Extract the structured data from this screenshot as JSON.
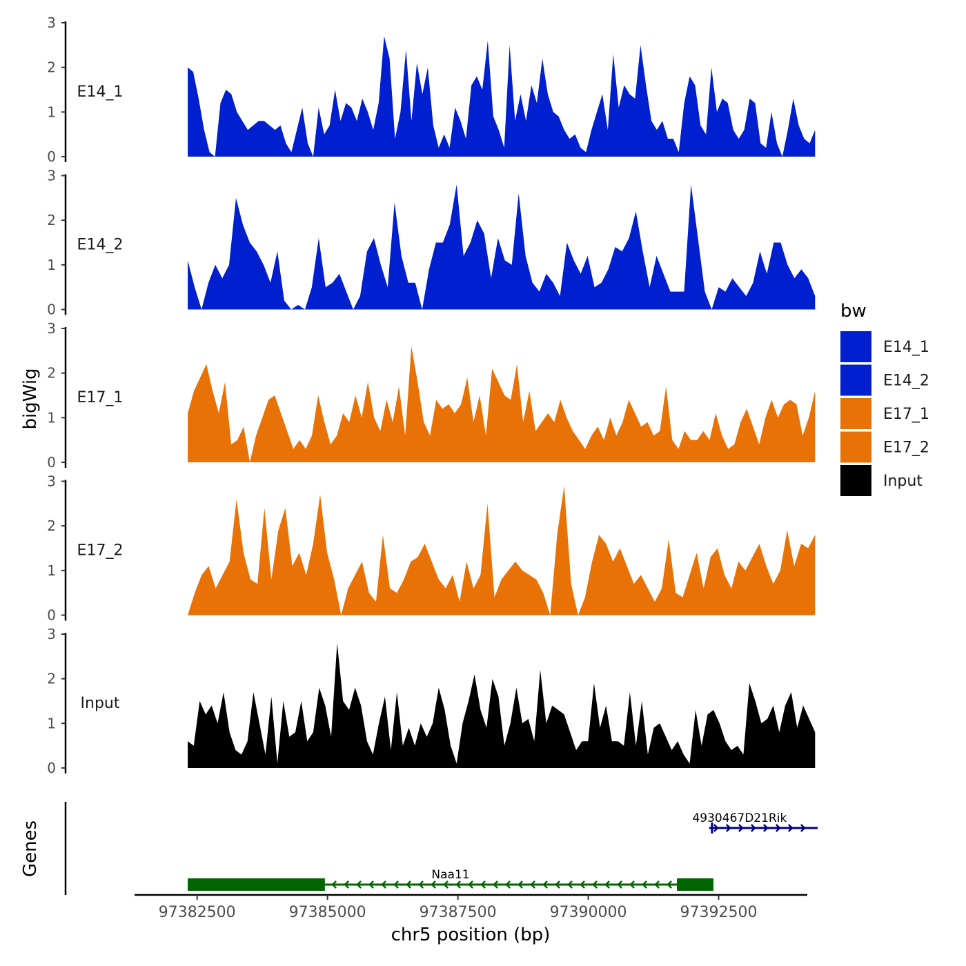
{
  "chart_data": {
    "type": "area",
    "ylabel": "bigWig",
    "xlabel": "chr5 position (bp)",
    "xlim": [
      97381300,
      97394200
    ],
    "x_ticks": [
      97382500,
      97385000,
      97387500,
      97390000,
      97392500
    ],
    "track_x_range": [
      97382320,
      97394350
    ],
    "ylim": [
      0,
      3
    ],
    "y_ticks": [
      0,
      1,
      2,
      3
    ],
    "legend": {
      "title": "bw",
      "entries": [
        {
          "label": "E14_1",
          "color": "#0020D0"
        },
        {
          "label": "E14_2",
          "color": "#0020D0"
        },
        {
          "label": "E17_1",
          "color": "#E87205"
        },
        {
          "label": "E17_2",
          "color": "#E87205"
        },
        {
          "label": "Input",
          "color": "#000000"
        }
      ]
    },
    "series": [
      {
        "name": "E14_1",
        "color": "#0020D0",
        "values": [
          2.0,
          1.9,
          1.3,
          0.6,
          0.1,
          0.0,
          1.2,
          1.5,
          1.4,
          1.0,
          0.8,
          0.6,
          0.7,
          0.8,
          0.8,
          0.7,
          0.6,
          0.7,
          0.3,
          0.1,
          0.6,
          1.1,
          0.3,
          0.0,
          1.1,
          0.5,
          0.7,
          1.5,
          0.8,
          1.2,
          1.1,
          0.8,
          1.3,
          1.0,
          0.6,
          1.2,
          2.7,
          2.2,
          0.4,
          1.0,
          2.4,
          0.8,
          2.1,
          1.4,
          2.0,
          0.7,
          0.2,
          0.5,
          0.2,
          1.1,
          0.8,
          0.4,
          1.6,
          1.8,
          1.5,
          2.6,
          0.9,
          0.6,
          0.2,
          2.5,
          0.8,
          1.4,
          0.8,
          1.6,
          1.2,
          2.2,
          1.4,
          1.0,
          0.9,
          0.6,
          0.4,
          0.5,
          0.2,
          0.1,
          0.6,
          1.0,
          1.4,
          0.6,
          2.3,
          1.1,
          1.6,
          1.4,
          1.3,
          2.5,
          1.6,
          0.8,
          0.6,
          0.8,
          0.4,
          0.4,
          0.1,
          1.2,
          1.8,
          1.6,
          0.7,
          0.5,
          2.0,
          1.0,
          1.3,
          1.2,
          0.6,
          0.4,
          0.6,
          1.3,
          1.2,
          0.3,
          0.2,
          1.0,
          0.3,
          0.0,
          0.6,
          1.3,
          0.7,
          0.4,
          0.3,
          0.6
        ]
      },
      {
        "name": "E14_2",
        "color": "#0020D0",
        "values": [
          1.1,
          0.5,
          0.0,
          0.6,
          1.0,
          0.7,
          1.0,
          2.5,
          1.9,
          1.5,
          1.3,
          1.0,
          0.6,
          1.3,
          0.2,
          0.0,
          0.1,
          0.0,
          0.5,
          1.6,
          0.5,
          0.6,
          0.8,
          0.4,
          0.0,
          0.3,
          1.3,
          1.6,
          1.0,
          0.5,
          2.4,
          1.2,
          0.6,
          0.6,
          0.0,
          0.9,
          1.5,
          1.5,
          1.9,
          2.8,
          1.2,
          1.5,
          2.0,
          1.7,
          0.7,
          1.6,
          1.1,
          1.0,
          2.6,
          1.2,
          0.6,
          0.4,
          0.8,
          0.6,
          0.3,
          1.5,
          1.1,
          0.8,
          1.2,
          0.5,
          0.6,
          0.9,
          1.4,
          1.3,
          1.6,
          2.2,
          1.3,
          0.5,
          1.2,
          0.8,
          0.4,
          0.4,
          0.4,
          2.8,
          1.6,
          0.4,
          0.0,
          0.5,
          0.4,
          0.7,
          0.5,
          0.3,
          0.6,
          1.3,
          0.8,
          1.5,
          1.5,
          1.0,
          0.7,
          0.9,
          0.7,
          0.3
        ]
      },
      {
        "name": "E17_1",
        "color": "#E87205",
        "values": [
          1.1,
          1.6,
          1.9,
          2.2,
          1.6,
          1.1,
          1.8,
          0.4,
          0.5,
          0.8,
          0.0,
          0.6,
          1.0,
          1.4,
          1.5,
          1.1,
          0.7,
          0.3,
          0.5,
          0.3,
          0.6,
          1.5,
          0.9,
          0.4,
          0.6,
          1.1,
          0.9,
          1.5,
          1.0,
          1.8,
          1.0,
          0.7,
          1.4,
          0.9,
          1.7,
          0.6,
          2.6,
          1.8,
          0.9,
          0.6,
          1.4,
          1.2,
          1.3,
          1.1,
          1.3,
          1.9,
          0.9,
          1.5,
          0.6,
          2.1,
          1.8,
          1.5,
          1.4,
          2.2,
          0.9,
          1.6,
          0.7,
          0.9,
          1.1,
          0.9,
          1.4,
          1.0,
          0.7,
          0.5,
          0.3,
          0.6,
          0.8,
          0.5,
          1.0,
          0.6,
          0.9,
          1.4,
          1.1,
          0.8,
          0.9,
          0.6,
          0.7,
          1.7,
          0.5,
          0.3,
          0.7,
          0.5,
          0.5,
          0.7,
          0.5,
          1.1,
          0.6,
          0.3,
          0.4,
          0.9,
          1.2,
          0.8,
          0.4,
          1.0,
          1.4,
          1.0,
          1.3,
          1.4,
          1.3,
          0.6,
          1.0,
          1.6
        ]
      },
      {
        "name": "E17_2",
        "color": "#E87205",
        "values": [
          0.0,
          0.5,
          0.9,
          1.1,
          0.6,
          0.9,
          1.2,
          2.6,
          1.4,
          0.8,
          0.7,
          2.4,
          0.8,
          1.9,
          2.4,
          1.1,
          1.4,
          0.9,
          1.6,
          2.7,
          1.4,
          0.8,
          0.0,
          0.6,
          0.9,
          1.2,
          0.5,
          0.3,
          1.8,
          0.6,
          0.5,
          0.8,
          1.2,
          1.3,
          1.6,
          1.2,
          0.8,
          0.6,
          0.9,
          0.3,
          1.2,
          0.6,
          0.9,
          2.5,
          0.4,
          0.8,
          1.0,
          1.2,
          1.0,
          0.9,
          0.8,
          0.5,
          0.0,
          1.8,
          2.9,
          0.7,
          0.0,
          0.4,
          1.2,
          1.8,
          1.6,
          1.2,
          1.5,
          1.1,
          0.7,
          0.9,
          0.6,
          0.3,
          0.6,
          1.7,
          0.5,
          0.4,
          0.9,
          1.4,
          0.6,
          1.3,
          1.5,
          0.9,
          0.6,
          1.2,
          1.0,
          1.3,
          1.6,
          1.1,
          0.7,
          1.0,
          1.9,
          1.1,
          1.6,
          1.5,
          1.8
        ]
      },
      {
        "name": "Input",
        "color": "#000000",
        "values": [
          0.6,
          0.5,
          1.5,
          1.2,
          1.4,
          1.0,
          1.7,
          0.8,
          0.4,
          0.3,
          0.6,
          1.7,
          1.0,
          0.3,
          1.6,
          0.1,
          1.5,
          0.7,
          0.8,
          1.5,
          0.6,
          0.8,
          1.8,
          1.4,
          0.7,
          2.8,
          1.5,
          1.3,
          1.8,
          1.4,
          0.6,
          0.3,
          1.0,
          1.6,
          0.4,
          1.7,
          0.5,
          0.9,
          0.5,
          1.0,
          0.7,
          1.0,
          1.8,
          1.3,
          0.5,
          0.1,
          1.0,
          1.5,
          2.1,
          1.3,
          0.9,
          2.0,
          1.6,
          0.5,
          1.0,
          1.8,
          1.0,
          1.1,
          0.6,
          2.2,
          1.0,
          1.4,
          1.3,
          1.2,
          0.8,
          0.4,
          0.6,
          0.6,
          1.9,
          0.9,
          1.4,
          0.6,
          0.6,
          0.5,
          1.7,
          0.5,
          1.5,
          0.3,
          0.9,
          1.0,
          0.7,
          0.4,
          0.6,
          0.3,
          0.1,
          1.3,
          0.5,
          1.2,
          1.3,
          1.0,
          0.6,
          0.4,
          0.5,
          0.3,
          1.9,
          1.5,
          1.0,
          1.1,
          1.4,
          0.8,
          1.4,
          1.7,
          0.9,
          1.4,
          1.1,
          0.8
        ]
      }
    ],
    "genes": {
      "label": "Genes",
      "tracks": [
        {
          "name": "Naa11",
          "strand": "-",
          "start": 97382320,
          "end": 97392400,
          "thick_blocks": [
            [
              97382320,
              97384950
            ],
            [
              97391700,
              97392400
            ]
          ],
          "color": "#006400"
        },
        {
          "name": "4930467D21Rik",
          "strand": "+",
          "start": 97392320,
          "end": 97394400,
          "thick_blocks": [],
          "color": "#000080"
        }
      ]
    }
  }
}
